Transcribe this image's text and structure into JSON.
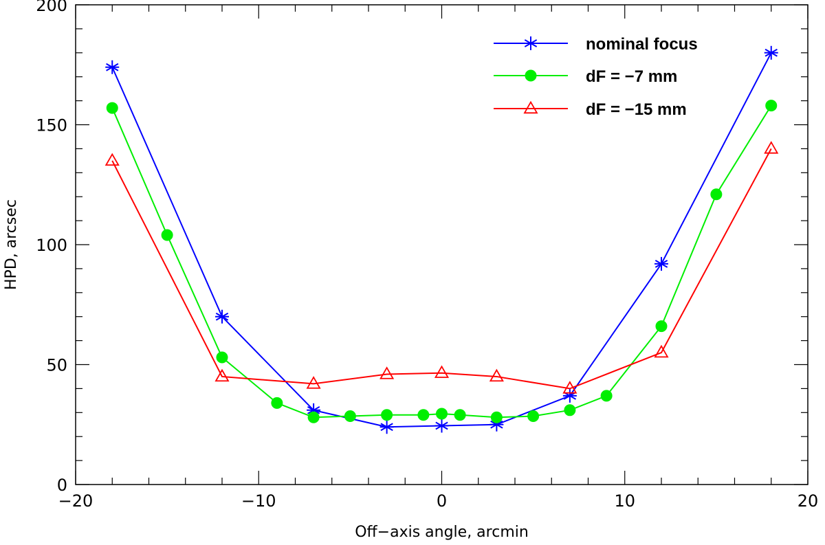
{
  "chart_data": {
    "type": "line",
    "title": "",
    "xlabel": "Off−axis angle, arcmin",
    "ylabel": "HPD, arcsec",
    "xlim": [
      -20,
      20
    ],
    "ylim": [
      0,
      200
    ],
    "xticks": [
      -20,
      -10,
      0,
      10,
      20
    ],
    "yticks": [
      0,
      50,
      100,
      150,
      200
    ],
    "xtick_labels": [
      "−20",
      "−10",
      "0",
      "10",
      "20"
    ],
    "ytick_labels": [
      "0",
      "50",
      "100",
      "150",
      "200"
    ],
    "x_minor_step": 2,
    "y_minor_step": 10,
    "grid": false,
    "legend_position": "top-right",
    "series": [
      {
        "name": "nominal focus",
        "color": "#0000ff",
        "marker": "asterisk",
        "x": [
          -18,
          -12,
          -7,
          -3,
          0,
          3,
          7,
          12,
          18
        ],
        "y": [
          174,
          70,
          31,
          24,
          24.5,
          25,
          37,
          92,
          180
        ]
      },
      {
        "name": "dF = −7 mm",
        "color": "#00ee00",
        "marker": "filled-circle",
        "x": [
          -18,
          -15,
          -12,
          -9,
          -7,
          -5,
          -3,
          -1,
          0,
          1,
          3,
          5,
          7,
          9,
          12,
          15,
          18
        ],
        "y": [
          157,
          104,
          53,
          34,
          28,
          28.5,
          29,
          29,
          29.5,
          29,
          28,
          28.5,
          31,
          37,
          66,
          121,
          158
        ]
      },
      {
        "name": "dF = −15 mm",
        "color": "#ff0000",
        "marker": "open-triangle",
        "x": [
          -18,
          -12,
          -7,
          -3,
          0,
          3,
          7,
          12,
          18
        ],
        "y": [
          135,
          45,
          42,
          46,
          46.5,
          45,
          40,
          55,
          140
        ]
      }
    ]
  }
}
